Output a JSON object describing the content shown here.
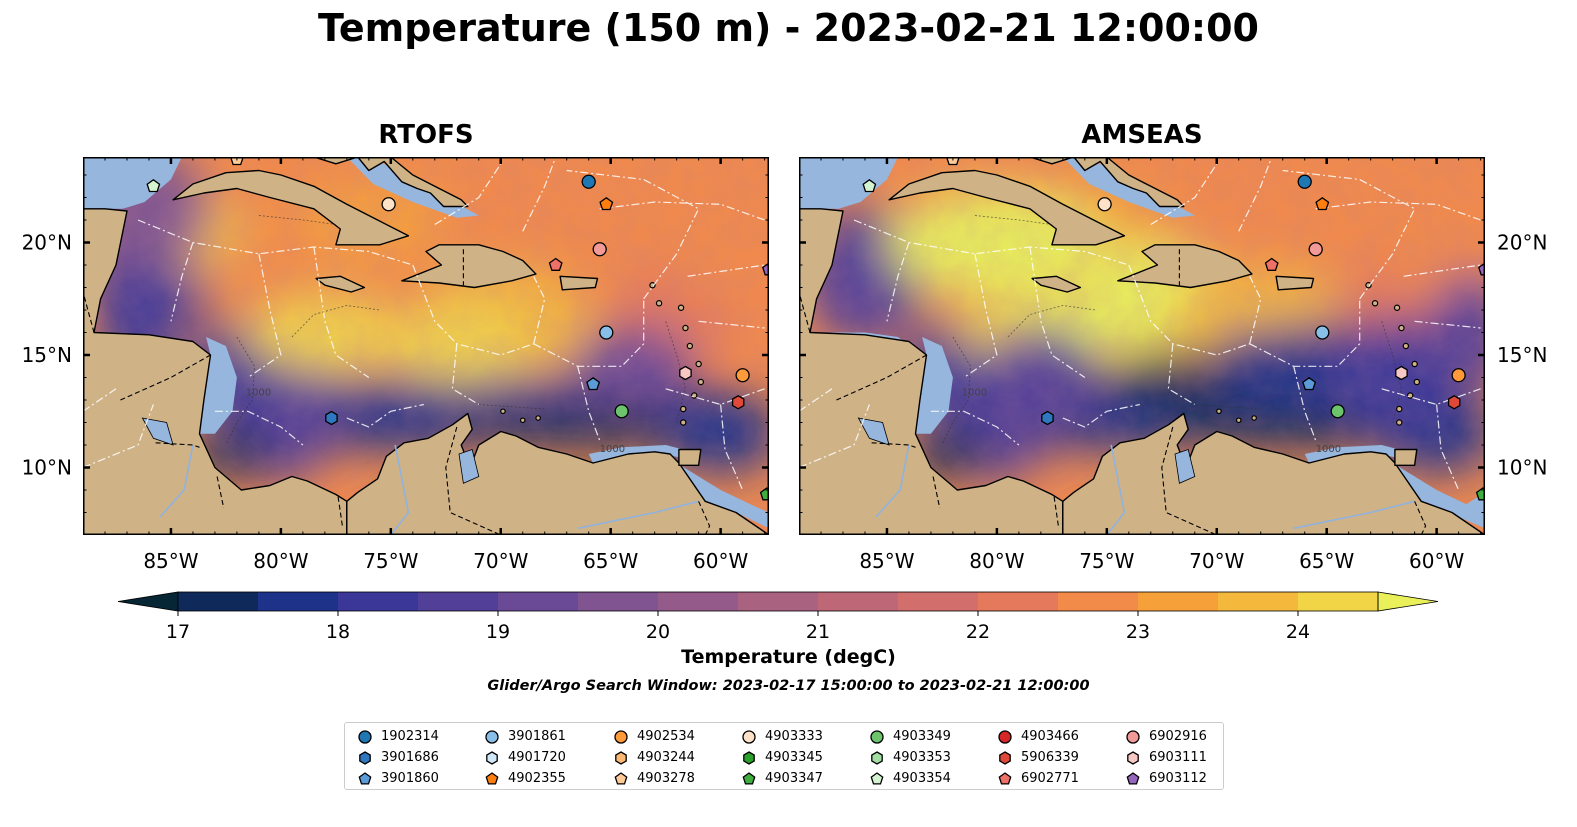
{
  "title": "Temperature (150 m) - 2023-02-21 12:00:00",
  "panels": [
    {
      "name": "RTOFS"
    },
    {
      "name": "AMSEAS"
    }
  ],
  "lon_ticks": [
    "85°W",
    "80°W",
    "75°W",
    "70°W",
    "65°W",
    "60°W"
  ],
  "lat_ticks": [
    "20°N",
    "15°N",
    "10°N"
  ],
  "contour_label": "1000",
  "colorbar": {
    "label": "Temperature (degC)",
    "min": 17,
    "max": 24.5,
    "ticks": [
      "17",
      "18",
      "19",
      "20",
      "21",
      "22",
      "23",
      "24"
    ],
    "colors": [
      "#062535",
      "#0f2a5a",
      "#1f3289",
      "#3a3798",
      "#523f98",
      "#6a4a96",
      "#7f5490",
      "#945b8a",
      "#aa6281",
      "#bd6777",
      "#d26e6c",
      "#e4795c",
      "#f28a4a",
      "#f6a03a",
      "#f4b93c",
      "#f2d447",
      "#e9f05a"
    ]
  },
  "search_window": "Glider/Argo Search Window: 2023-02-17 15:00:00 to 2023-02-21 12:00:00",
  "legend": [
    {
      "id": "1902314",
      "marker": "circle",
      "color": "#1f77b4"
    },
    {
      "id": "3901686",
      "marker": "hexagon",
      "color": "#2f78c0"
    },
    {
      "id": "3901860",
      "marker": "pentagon",
      "color": "#5a9bd8"
    },
    {
      "id": "3901861",
      "marker": "circle",
      "color": "#88bfe8"
    },
    {
      "id": "4901720",
      "marker": "hexagon",
      "color": "#cfe7f7"
    },
    {
      "id": "4902355",
      "marker": "pentagon",
      "color": "#ff7f0e"
    },
    {
      "id": "4902534",
      "marker": "circle",
      "color": "#ff9a3a"
    },
    {
      "id": "4903244",
      "marker": "hexagon",
      "color": "#ffb873"
    },
    {
      "id": "4903278",
      "marker": "pentagon",
      "color": "#ffcc99"
    },
    {
      "id": "4903333",
      "marker": "circle",
      "color": "#fde2c8"
    },
    {
      "id": "4903345",
      "marker": "hexagon",
      "color": "#2ca02c"
    },
    {
      "id": "4903347",
      "marker": "pentagon",
      "color": "#3fae3f"
    },
    {
      "id": "4903349",
      "marker": "circle",
      "color": "#6cc46c"
    },
    {
      "id": "4903353",
      "marker": "hexagon",
      "color": "#a3dea3"
    },
    {
      "id": "4903354",
      "marker": "pentagon",
      "color": "#d4f3d0"
    },
    {
      "id": "4903466",
      "marker": "circle",
      "color": "#d62728"
    },
    {
      "id": "5906339",
      "marker": "hexagon",
      "color": "#e0483a"
    },
    {
      "id": "6902771",
      "marker": "pentagon",
      "color": "#ee7066"
    },
    {
      "id": "6902916",
      "marker": "circle",
      "color": "#f29a97"
    },
    {
      "id": "6903111",
      "marker": "hexagon",
      "color": "#f8c9c4"
    },
    {
      "id": "6903112",
      "marker": "pentagon",
      "color": "#9467bd"
    }
  ],
  "observations": [
    {
      "id": "1902314",
      "lon": -66.0,
      "lat": 22.7
    },
    {
      "id": "3901686",
      "lon": -77.7,
      "lat": 12.2
    },
    {
      "id": "3901860",
      "lon": -65.8,
      "lat": 13.7
    },
    {
      "id": "3901861",
      "lon": -65.2,
      "lat": 16.0
    },
    {
      "id": "4902355",
      "lon": -65.2,
      "lat": 21.7
    },
    {
      "id": "4902534",
      "lon": -59.0,
      "lat": 14.1
    },
    {
      "id": "4903278",
      "lon": -82.0,
      "lat": 23.7
    },
    {
      "id": "4903333",
      "lon": -75.1,
      "lat": 21.7
    },
    {
      "id": "4903347",
      "lon": -57.9,
      "lat": 8.8
    },
    {
      "id": "4903349",
      "lon": -64.5,
      "lat": 12.5
    },
    {
      "id": "4903354",
      "lon": -85.8,
      "lat": 22.5
    },
    {
      "id": "5906339",
      "lon": -59.2,
      "lat": 12.9
    },
    {
      "id": "6902771",
      "lon": -67.5,
      "lat": 19.0
    },
    {
      "id": "6902916",
      "lon": -65.5,
      "lat": 19.7
    },
    {
      "id": "6903111",
      "lon": -61.6,
      "lat": 14.2
    },
    {
      "id": "6903112",
      "lon": -57.8,
      "lat": 18.8
    }
  ]
}
